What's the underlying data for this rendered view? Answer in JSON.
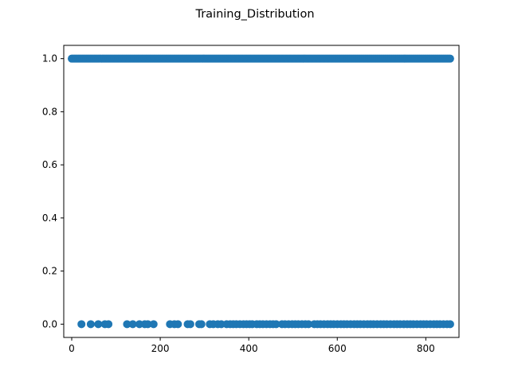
{
  "chart_data": {
    "type": "scatter",
    "title": "Training_Distribution",
    "xlabel": "",
    "ylabel": "",
    "xlim": [
      -18,
      875
    ],
    "ylim": [
      -0.05,
      1.05
    ],
    "xticks": [
      0,
      200,
      400,
      600,
      800
    ],
    "yticks": [
      0.0,
      0.2,
      0.4,
      0.6,
      0.8,
      1.0
    ],
    "xtick_labels": [
      "0",
      "200",
      "400",
      "600",
      "800"
    ],
    "ytick_labels": [
      "0.0",
      "0.2",
      "0.4",
      "0.6",
      "0.8",
      "1.0"
    ],
    "grid": false,
    "legend": "none",
    "marker_color": "#1f77b4",
    "series": [
      {
        "x_range": [
          0,
          855
        ],
        "y": 1,
        "description": "dense points at every x from 0 to 855"
      },
      {
        "x": [
          22,
          43,
          60,
          75,
          83,
          125,
          138,
          153,
          165,
          172,
          185,
          222,
          232,
          240,
          262,
          268,
          288,
          293,
          312,
          320,
          330,
          338,
          350,
          358,
          365,
          372,
          380,
          388,
          395,
          402,
          408,
          418,
          425,
          432,
          440,
          448,
          455,
          462,
          475,
          482,
          490,
          498,
          505,
          512,
          520,
          528,
          535,
          548,
          555,
          562,
          570,
          578,
          585,
          592,
          600,
          608,
          615,
          622,
          630,
          638,
          645,
          652,
          660,
          668,
          675,
          682,
          690,
          698,
          705,
          712,
          720,
          728,
          735,
          742,
          750,
          758,
          765,
          772,
          780,
          788,
          795,
          802,
          810,
          818,
          825,
          832,
          840,
          848,
          855
        ],
        "y": 0
      }
    ]
  }
}
